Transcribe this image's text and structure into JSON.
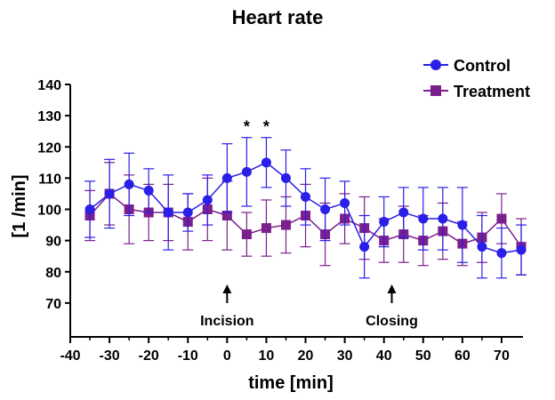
{
  "chart_data": {
    "type": "line",
    "title": "Heart rate",
    "xlabel": "time [min]",
    "ylabel": "[1 /min]",
    "xlim": [
      -40,
      75
    ],
    "ylim": [
      60,
      140
    ],
    "x_ticks": [
      -40,
      -30,
      -20,
      -10,
      0,
      10,
      20,
      30,
      40,
      50,
      60,
      70
    ],
    "y_ticks": [
      70,
      80,
      90,
      100,
      110,
      120,
      130,
      140
    ],
    "x": [
      -35,
      -30,
      -25,
      -20,
      -15,
      -10,
      -5,
      0,
      5,
      10,
      15,
      20,
      25,
      30,
      35,
      40,
      45,
      50,
      55,
      60,
      65,
      70,
      75
    ],
    "series": [
      {
        "name": "Control",
        "marker": "circle",
        "color": "#2a1fe6",
        "values": [
          100,
          105,
          108,
          106,
          99,
          99,
          103,
          110,
          112,
          115,
          110,
          104,
          100,
          102,
          88,
          96,
          99,
          97,
          97,
          95,
          88,
          86,
          87
        ],
        "errors": [
          9,
          11,
          10,
          7,
          12,
          6,
          8,
          11,
          11,
          8,
          9,
          9,
          10,
          7,
          10,
          8,
          8,
          10,
          10,
          12,
          10,
          8,
          8
        ]
      },
      {
        "name": "Treatment",
        "marker": "square",
        "color": "#7b1f8c",
        "values": [
          98,
          105,
          100,
          99,
          99,
          96,
          100,
          98,
          92,
          94,
          95,
          98,
          92,
          97,
          94,
          90,
          92,
          90,
          93,
          89,
          91,
          97,
          88
        ],
        "errors": [
          8,
          10,
          11,
          9,
          9,
          9,
          10,
          11,
          7,
          9,
          9,
          10,
          10,
          8,
          10,
          7,
          9,
          8,
          9,
          7,
          8,
          8,
          9
        ]
      }
    ],
    "significance": [
      {
        "x": 5,
        "label": "*"
      },
      {
        "x": 10,
        "label": "*"
      }
    ],
    "annotations": [
      {
        "x": 0,
        "label": "Incision"
      },
      {
        "x": 42,
        "label": "Closing"
      }
    ],
    "legend_position": "top-right"
  }
}
